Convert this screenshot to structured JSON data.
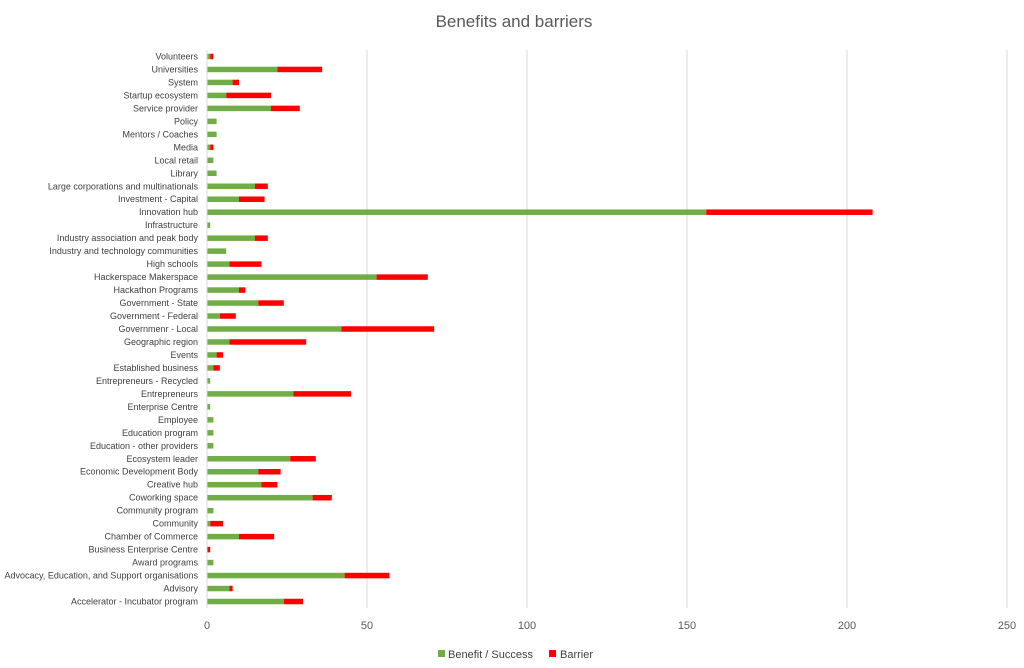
{
  "chart_data": {
    "type": "bar",
    "orientation": "horizontal",
    "stacked": true,
    "title": "Benefits and barriers",
    "xlim": [
      0,
      250
    ],
    "xticks": [
      0,
      50,
      100,
      150,
      200,
      250
    ],
    "grid": "vertical",
    "legend_position": "bottom",
    "categories": [
      "Volunteers",
      "Universities",
      "System",
      "Startup ecosystem",
      "Service provider",
      "Policy",
      "Mentors / Coaches",
      "Media",
      "Local retail",
      "Library",
      "Large corporations and multinationals",
      "Investment - Capital",
      "Innovation hub",
      "Infrastructure",
      "Industry association and peak body",
      "Industry and technology communities",
      "High schools",
      "Hackerspace Makerspace",
      "Hackathon Programs",
      "Government - State",
      "Government - Federal",
      "Governmenr - Local",
      "Geographic region",
      "Events",
      "Established business",
      "Entrepreneurs - Recycled",
      "Entrepreneurs",
      "Enterprise Centre",
      "Employee",
      "Education program",
      "Education - other providers",
      "Ecosystem leader",
      "Economic Development Body",
      "Creative hub",
      "Coworking space",
      "Community program",
      "Community",
      "Chamber of Commerce",
      "Business Enterprise Centre",
      "Award programs",
      "Advocacy, Education, and Support organisations",
      "Advisory",
      "Accelerator - Incubator program"
    ],
    "series": [
      {
        "name": "Benefit / Success",
        "color": "#70ad47",
        "values": [
          1,
          22,
          8,
          6,
          20,
          3,
          3,
          1,
          2,
          3,
          15,
          10,
          156,
          1,
          15,
          6,
          7,
          53,
          10,
          16,
          4,
          42,
          7,
          3,
          2,
          1,
          27,
          1,
          2,
          2,
          2,
          26,
          16,
          17,
          33,
          2,
          1,
          10,
          0,
          2,
          43,
          7,
          24
        ]
      },
      {
        "name": "Barrier",
        "color": "#ff0000",
        "values": [
          1,
          14,
          2,
          14,
          9,
          0,
          0,
          1,
          0,
          0,
          4,
          8,
          52,
          0,
          4,
          0,
          10,
          16,
          2,
          8,
          5,
          29,
          24,
          2,
          2,
          0,
          18,
          0,
          0,
          0,
          0,
          8,
          7,
          5,
          6,
          0,
          4,
          11,
          1,
          0,
          14,
          1,
          6
        ]
      }
    ]
  }
}
